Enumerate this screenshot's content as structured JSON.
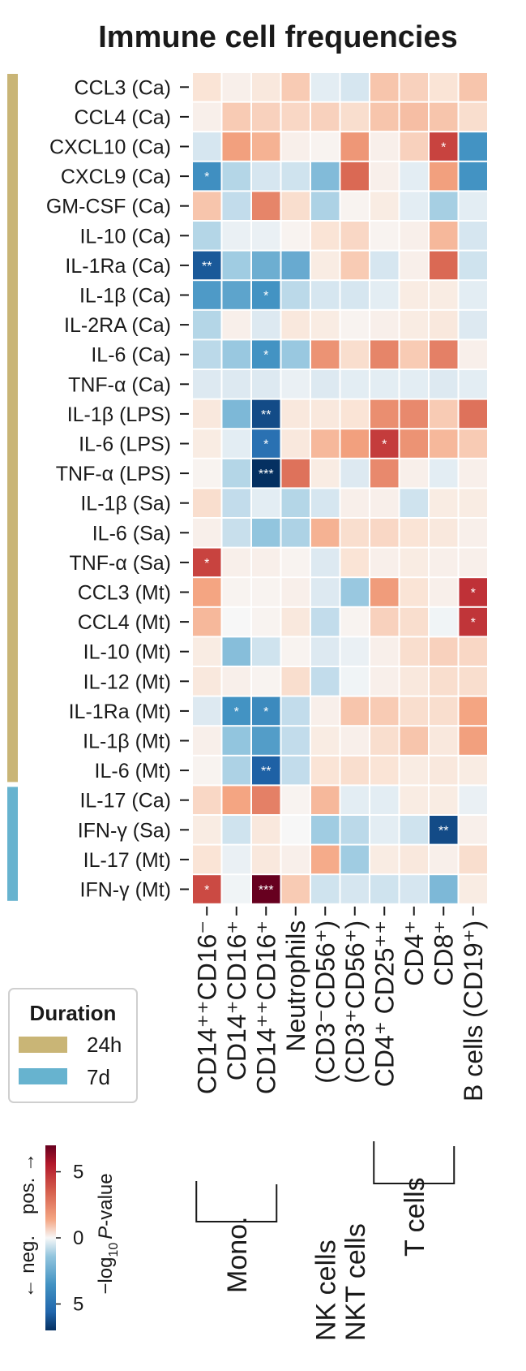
{
  "chart_data": {
    "type": "heatmap",
    "title": "Immune cell frequencies",
    "rows": [
      "CCL3 (Ca)",
      "CCL4 (Ca)",
      "CXCL10 (Ca)",
      "CXCL9 (Ca)",
      "GM-CSF (Ca)",
      "IL-10 (Ca)",
      "IL-1Ra (Ca)",
      "IL-1β (Ca)",
      "IL-2RA (Ca)",
      "IL-6 (Ca)",
      "TNF-α (Ca)",
      "IL-1β (LPS)",
      "IL-6 (LPS)",
      "TNF-α (LPS)",
      "IL-1β (Sa)",
      "IL-6 (Sa)",
      "TNF-α (Sa)",
      "CCL3 (Mt)",
      "CCL4 (Mt)",
      "IL-10 (Mt)",
      "IL-12 (Mt)",
      "IL-1Ra (Mt)",
      "IL-1β (Mt)",
      "IL-6 (Mt)",
      "IL-17 (Ca)",
      "IFN-γ (Sa)",
      "IL-17 (Mt)",
      "IFN-γ (Mt)"
    ],
    "columns": [
      "CD14⁺⁺CD16⁻",
      "CD14⁺CD16⁺",
      "CD14⁺⁺CD16⁺",
      "Neutrophils",
      "NK cells (CD3⁻CD56⁺)",
      "NKT cells (CD3⁺CD56⁺)",
      "CD4⁺ CD25⁺⁺",
      "CD4⁺",
      "CD8⁺",
      "B cells (CD19⁺)"
    ],
    "column_labels_main": [
      "CD14⁺⁺CD16⁻",
      "CD14⁺CD16⁺",
      "CD14⁺⁺CD16⁺",
      "Neutrophils",
      "(CD3⁻CD56⁺)",
      "(CD3⁺CD56⁺)",
      "CD4⁺ CD25⁺⁺",
      "CD4⁺",
      "CD8⁺",
      "B cells (CD19⁺)"
    ],
    "column_groups": [
      {
        "label": "Mono.",
        "start": 0,
        "end": 2
      },
      {
        "label": "NK cells",
        "start": 4,
        "end": 4
      },
      {
        "label": "NKT cells",
        "start": 5,
        "end": 5
      },
      {
        "label": "T cells",
        "start": 6,
        "end": 8
      }
    ],
    "values": [
      [
        0.5,
        0.2,
        0.4,
        0.9,
        -0.3,
        -0.5,
        1.0,
        0.8,
        0.5,
        1.0
      ],
      [
        0.2,
        0.9,
        0.8,
        0.7,
        0.8,
        0.6,
        1.0,
        1.1,
        1.0,
        0.6
      ],
      [
        -0.5,
        1.6,
        1.3,
        0.2,
        0.1,
        1.8,
        0.2,
        0.8,
        3.8,
        -3.0
      ],
      [
        -3.2,
        -1.0,
        -0.5,
        -0.6,
        -1.8,
        2.8,
        0.2,
        -0.3,
        1.6,
        -3.0
      ],
      [
        1.0,
        -0.8,
        2.2,
        0.6,
        -1.1,
        0.1,
        0.3,
        -0.3,
        -1.2,
        -0.3
      ],
      [
        -1.0,
        -0.2,
        -0.2,
        0.1,
        0.5,
        0.7,
        0.1,
        0.2,
        1.2,
        -0.5
      ],
      [
        -5.5,
        -1.3,
        -2.2,
        -2.3,
        0.3,
        0.9,
        -0.5,
        0.2,
        2.8,
        -0.6
      ],
      [
        -2.8,
        -2.5,
        -3.0,
        -0.9,
        -0.5,
        -0.5,
        -0.3,
        0.3,
        0.3,
        -0.3
      ],
      [
        -1.0,
        0.2,
        -0.4,
        0.4,
        0.3,
        0.1,
        0.2,
        0.3,
        0.4,
        -0.4
      ],
      [
        -0.9,
        -1.4,
        -3.0,
        -1.4,
        1.9,
        0.6,
        2.2,
        0.9,
        2.3,
        0.2
      ],
      [
        -0.4,
        -0.4,
        -0.4,
        -0.2,
        -0.4,
        -0.3,
        -0.3,
        -0.3,
        -0.4,
        -0.3
      ],
      [
        0.4,
        -1.9,
        -6.0,
        0.4,
        0.4,
        0.5,
        2.0,
        2.1,
        0.9,
        2.6
      ],
      [
        0.3,
        -0.3,
        -4.5,
        0.4,
        1.2,
        1.6,
        4.0,
        1.9,
        1.2,
        0.9
      ],
      [
        0.1,
        -1.0,
        -7.0,
        2.6,
        0.3,
        -0.4,
        2.1,
        0.2,
        -0.3,
        0.2
      ],
      [
        0.6,
        -0.8,
        -0.3,
        -1.0,
        -0.5,
        0.2,
        0.2,
        -0.6,
        0.3,
        0.3
      ],
      [
        0.2,
        -0.7,
        -1.5,
        -1.1,
        1.3,
        0.6,
        0.7,
        0.5,
        0.4,
        0.2
      ],
      [
        3.8,
        0.2,
        0.2,
        0.1,
        -0.4,
        0.5,
        0.2,
        0.3,
        0.2,
        0.2
      ],
      [
        1.5,
        0.1,
        0.1,
        0.2,
        -0.4,
        -1.4,
        1.7,
        0.5,
        0.2,
        4.3
      ],
      [
        1.2,
        0.0,
        0.1,
        0.4,
        -0.8,
        0.1,
        0.8,
        0.6,
        -0.1,
        4.2
      ],
      [
        0.3,
        -1.7,
        -0.6,
        0.1,
        -0.4,
        -0.2,
        0.2,
        0.6,
        0.8,
        0.7
      ],
      [
        0.4,
        0.2,
        0.1,
        0.6,
        -0.8,
        -0.1,
        0.2,
        0.4,
        0.6,
        0.6
      ],
      [
        -0.4,
        -3.0,
        -3.4,
        -0.8,
        0.2,
        1.0,
        0.9,
        0.6,
        0.6,
        1.5
      ],
      [
        0.2,
        -1.5,
        -2.7,
        -0.8,
        0.3,
        0.2,
        0.6,
        1.0,
        0.4,
        1.6
      ],
      [
        0.1,
        -1.1,
        -5.2,
        -0.8,
        0.5,
        0.6,
        0.5,
        0.3,
        0.4,
        0.3
      ],
      [
        0.7,
        1.5,
        2.3,
        0.1,
        1.2,
        -0.3,
        -0.3,
        0.3,
        0.3,
        -0.2
      ],
      [
        0.3,
        -0.6,
        0.4,
        0.0,
        -1.3,
        -0.9,
        -0.3,
        -0.6,
        -6.0,
        0.2
      ],
      [
        0.5,
        -0.2,
        0.4,
        0.2,
        1.4,
        -1.3,
        0.3,
        0.4,
        0.2,
        0.6
      ],
      [
        3.6,
        -0.1,
        7.0,
        0.9,
        -0.6,
        -0.5,
        -0.6,
        -0.5,
        -1.9,
        0.3
      ]
    ],
    "significance": [
      [
        "",
        "",
        "",
        "",
        "",
        "",
        "",
        "",
        "",
        ""
      ],
      [
        "",
        "",
        "",
        "",
        "",
        "",
        "",
        "",
        "",
        ""
      ],
      [
        "",
        "",
        "",
        "",
        "",
        "",
        "",
        "",
        "*",
        ""
      ],
      [
        "*",
        "",
        "",
        "",
        "",
        "",
        "",
        "",
        "",
        ""
      ],
      [
        "",
        "",
        "",
        "",
        "",
        "",
        "",
        "",
        "",
        ""
      ],
      [
        "",
        "",
        "",
        "",
        "",
        "",
        "",
        "",
        "",
        ""
      ],
      [
        "**",
        "",
        "",
        "",
        "",
        "",
        "",
        "",
        "",
        ""
      ],
      [
        "",
        "",
        "*",
        "",
        "",
        "",
        "",
        "",
        "",
        ""
      ],
      [
        "",
        "",
        "",
        "",
        "",
        "",
        "",
        "",
        "",
        ""
      ],
      [
        "",
        "",
        "*",
        "",
        "",
        "",
        "",
        "",
        "",
        ""
      ],
      [
        "",
        "",
        "",
        "",
        "",
        "",
        "",
        "",
        "",
        ""
      ],
      [
        "",
        "",
        "**",
        "",
        "",
        "",
        "",
        "",
        "",
        ""
      ],
      [
        "",
        "",
        "*",
        "",
        "",
        "",
        "*",
        "",
        "",
        ""
      ],
      [
        "",
        "",
        "***",
        "",
        "",
        "",
        "",
        "",
        "",
        ""
      ],
      [
        "",
        "",
        "",
        "",
        "",
        "",
        "",
        "",
        "",
        ""
      ],
      [
        "",
        "",
        "",
        "",
        "",
        "",
        "",
        "",
        "",
        ""
      ],
      [
        "*",
        "",
        "",
        "",
        "",
        "",
        "",
        "",
        "",
        ""
      ],
      [
        "",
        "",
        "",
        "",
        "",
        "",
        "",
        "",
        "",
        "*"
      ],
      [
        "",
        "",
        "",
        "",
        "",
        "",
        "",
        "",
        "",
        "*"
      ],
      [
        "",
        "",
        "",
        "",
        "",
        "",
        "",
        "",
        "",
        ""
      ],
      [
        "",
        "",
        "",
        "",
        "",
        "",
        "",
        "",
        "",
        ""
      ],
      [
        "",
        "*",
        "*",
        "",
        "",
        "",
        "",
        "",
        "",
        ""
      ],
      [
        "",
        "",
        "",
        "",
        "",
        "",
        "",
        "",
        "",
        ""
      ],
      [
        "",
        "",
        "**",
        "",
        "",
        "",
        "",
        "",
        "",
        ""
      ],
      [
        "",
        "",
        "",
        "",
        "",
        "",
        "",
        "",
        "",
        ""
      ],
      [
        "",
        "",
        "",
        "",
        "",
        "",
        "",
        "",
        "**",
        ""
      ],
      [
        "",
        "",
        "",
        "",
        "",
        "",
        "",
        "",
        "",
        ""
      ],
      [
        "*",
        "",
        "***",
        "",
        "",
        "",
        "",
        "",
        "",
        ""
      ]
    ],
    "row_duration": [
      "24h",
      "24h",
      "24h",
      "24h",
      "24h",
      "24h",
      "24h",
      "24h",
      "24h",
      "24h",
      "24h",
      "24h",
      "24h",
      "24h",
      "24h",
      "24h",
      "24h",
      "24h",
      "24h",
      "24h",
      "24h",
      "24h",
      "24h",
      "24h",
      "7d",
      "7d",
      "7d",
      "7d"
    ],
    "legend": {
      "title": "Duration",
      "items": [
        {
          "label": "24h",
          "color": "#c9b576"
        },
        {
          "label": "7d",
          "color": "#67b3cf"
        }
      ]
    },
    "colorbar": {
      "ticks": [
        "5",
        "0",
        "5"
      ],
      "tick_values": [
        5,
        0,
        -5
      ],
      "range": [
        -7,
        7
      ],
      "label_prefix": "−log",
      "label_sub": "10",
      "label_main": "P",
      "label_suffix": "-value",
      "pos_label": "pos. →",
      "neg_label": "← neg."
    }
  }
}
